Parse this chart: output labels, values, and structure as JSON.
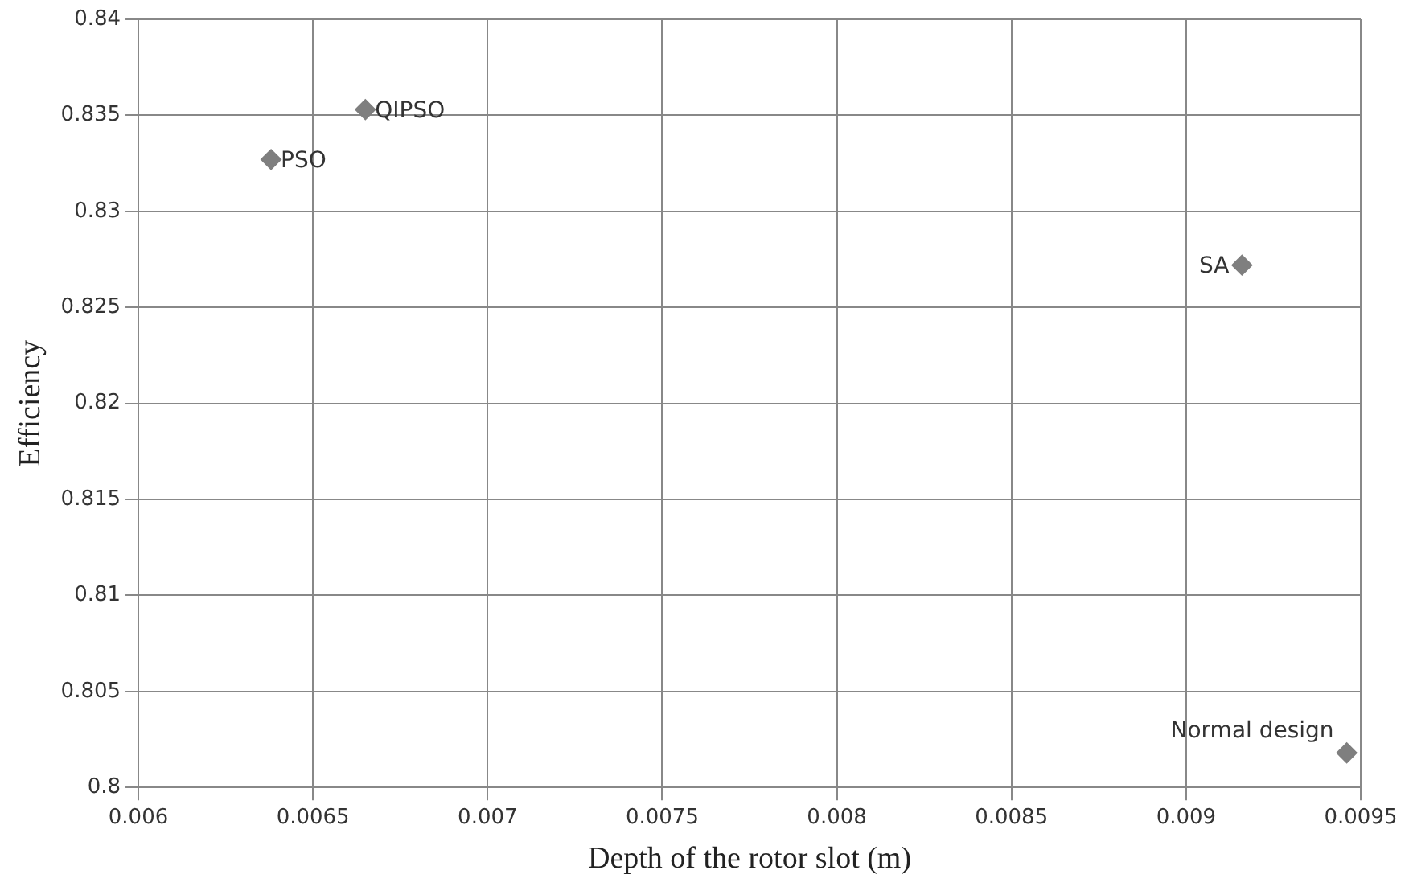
{
  "chart_data": {
    "type": "scatter",
    "xlabel": "Depth of the rotor slot (m)",
    "ylabel": "Efficiency",
    "x": [
      0.00638,
      0.00665,
      0.00916,
      0.00946
    ],
    "values": [
      0.8327,
      0.8353,
      0.8272,
      0.8018
    ],
    "color": "#7f7f7f",
    "marker": "diamond",
    "grid": true,
    "legend": false,
    "xlim": [
      0.006,
      0.0095
    ],
    "xticks": [
      0.006,
      0.0065,
      0.007,
      0.0075,
      0.008,
      0.0085,
      0.009,
      0.0095
    ],
    "ylim": [
      0.8,
      0.84
    ],
    "yticks": [
      0.8,
      0.805,
      0.81,
      0.815,
      0.82,
      0.825,
      0.83,
      0.835,
      0.84
    ],
    "annotations": [
      {
        "text": "PSO",
        "x": 0.00638,
        "y": 0.8327
      },
      {
        "text": "QIPSO",
        "x": 0.00665,
        "y": 0.8353
      },
      {
        "text": "SA",
        "x": 0.00916,
        "y": 0.8272
      },
      {
        "text": "Normal design",
        "x": 0.00946,
        "y": 0.8018
      }
    ]
  }
}
